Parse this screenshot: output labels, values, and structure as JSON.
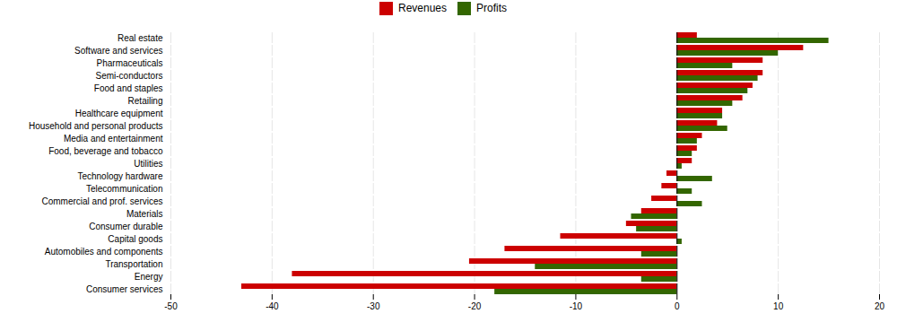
{
  "chart_data": {
    "type": "bar",
    "orientation": "horizontal",
    "categories": [
      "Real estate",
      "Software and services",
      "Pharmaceuticals",
      "Semi-conductors",
      "Food and staples",
      "Retailing",
      "Healthcare equipment",
      "Household and personal products",
      "Media and entertainment",
      "Food, beverage and tobacco",
      "Utilities",
      "Technology hardware",
      "Telecommunication",
      "Commercial and prof. services",
      "Materials",
      "Consumer durable",
      "Capital goods",
      "Automobiles and components",
      "Transportation",
      "Energy",
      "Consumer services"
    ],
    "series": [
      {
        "name": "Revenues",
        "color": "#cc0000",
        "values": [
          2.0,
          12.5,
          8.5,
          8.5,
          7.5,
          6.5,
          4.5,
          4.0,
          2.5,
          2.0,
          1.5,
          -1.0,
          -1.5,
          -2.5,
          -3.5,
          -5.0,
          -11.5,
          -17.0,
          -20.5,
          -38.0,
          -43.0
        ]
      },
      {
        "name": "Profits",
        "color": "#336600",
        "values": [
          15.0,
          10.0,
          5.5,
          8.0,
          7.0,
          5.5,
          4.5,
          5.0,
          2.0,
          1.5,
          0.5,
          3.5,
          1.5,
          2.5,
          -4.5,
          -4.0,
          0.5,
          -3.5,
          -14.0,
          -3.5,
          -18.0
        ]
      }
    ],
    "xlim": [
      -50,
      20
    ],
    "xticks": [
      -50,
      -40,
      -30,
      -20,
      -10,
      0,
      10,
      20
    ],
    "grid": true,
    "legend": "top"
  }
}
